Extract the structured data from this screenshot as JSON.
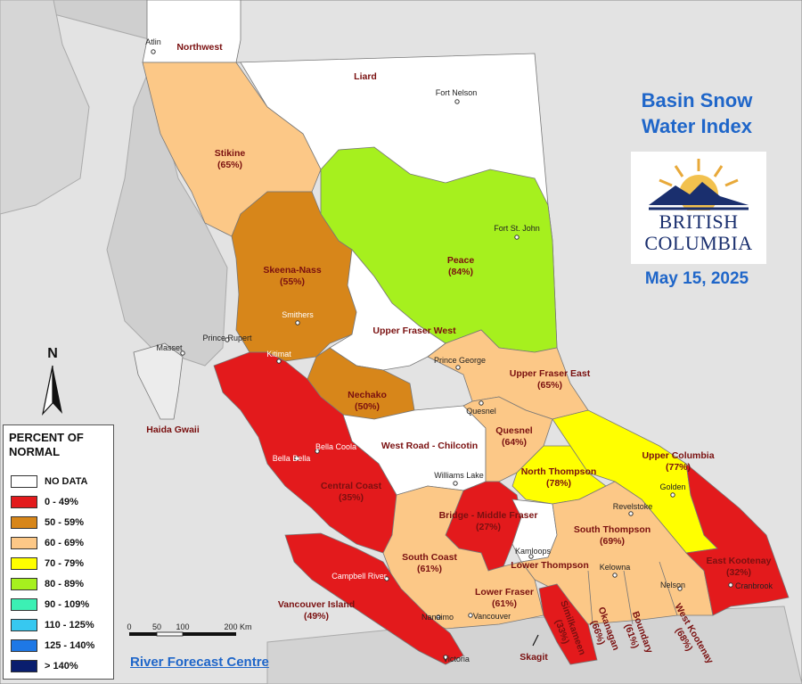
{
  "title_line1": "Basin Snow",
  "title_line2": "Water Index",
  "date": "May 15, 2025",
  "logo": {
    "line1": "BRITISH",
    "line2": "COLUMBIA"
  },
  "credit": "River Forecast Centre",
  "north_label": "N",
  "scale": {
    "t0": "0",
    "t1": "50",
    "t2": "100",
    "t3": "200 Km"
  },
  "legend": {
    "title1": "PERCENT OF",
    "title2": "NORMAL",
    "items": [
      {
        "label": "NO DATA",
        "color": "#ffffff"
      },
      {
        "label": "0 - 49%",
        "color": "#e31a1c"
      },
      {
        "label": "50 - 59%",
        "color": "#d7861a"
      },
      {
        "label": "60 - 69%",
        "color": "#fcc887"
      },
      {
        "label": "70 - 79%",
        "color": "#ffff00"
      },
      {
        "label": "80 - 89%",
        "color": "#a6f01e"
      },
      {
        "label": "90 - 109%",
        "color": "#3cf0b4"
      },
      {
        "label": "110 - 125%",
        "color": "#37c8f0"
      },
      {
        "label": "125 - 140%",
        "color": "#1e78e6"
      },
      {
        "label": "> 140%",
        "color": "#0a1e6e"
      }
    ]
  },
  "basins": {
    "northwest": {
      "name": "Northwest"
    },
    "liard": {
      "name": "Liard"
    },
    "stikine": {
      "name": "Stikine",
      "pct": "(65%)"
    },
    "skeena": {
      "name": "Skeena-Nass",
      "pct": "(55%)"
    },
    "peace": {
      "name": "Peace",
      "pct": "(84%)"
    },
    "ufw": {
      "name": "Upper Fraser West"
    },
    "ufe": {
      "name": "Upper Fraser East",
      "pct": "(65%)"
    },
    "nechako": {
      "name": "Nechako",
      "pct": "(50%)"
    },
    "haida": {
      "name": "Haida Gwaii"
    },
    "wrc": {
      "name": "West Road - Chilcotin"
    },
    "quesnel": {
      "name": "Quesnel",
      "pct": "(64%)"
    },
    "uppercol": {
      "name": "Upper Columbia",
      "pct": "(77%)"
    },
    "norththompson": {
      "name": "North Thompson",
      "pct": "(78%)"
    },
    "centralcoast": {
      "name": "Central Coast",
      "pct": "(35%)"
    },
    "bmf": {
      "name": "Bridge - Middle Fraser",
      "pct": "(27%)"
    },
    "souththompson": {
      "name": "South Thompson",
      "pct": "(69%)"
    },
    "southcoast": {
      "name": "South Coast",
      "pct": "(61%)"
    },
    "lowerthompson": {
      "name": "Lower Thompson"
    },
    "eastkootenay": {
      "name": "East Kootenay",
      "pct": "(32%)"
    },
    "vancouverisland": {
      "name": "Vancouver Island",
      "pct": "(49%)"
    },
    "lowerfraser": {
      "name": "Lower Fraser",
      "pct": "(61%)"
    },
    "similkameen": {
      "name": "Similkameen",
      "pct": "(33%)"
    },
    "okanagan": {
      "name": "Okanagan",
      "pct": "(66%)"
    },
    "boundary": {
      "name": "Boundary",
      "pct": "(61%)"
    },
    "westkootenay": {
      "name": "West Kootenay",
      "pct": "(68%)"
    },
    "skagit": {
      "name": "Skagit"
    }
  },
  "cities": {
    "atlin": "Atlin",
    "fortnelson": "Fort Nelson",
    "fortstjohn": "Fort St. John",
    "masset": "Masset",
    "princerupert": "Prince Rupert",
    "smithers": "Smithers",
    "kitimat": "Kitimat",
    "princegeorge": "Prince George",
    "quesnel": "Quesnel",
    "bellacoola": "Bella Coola",
    "bellabella": "Bella Bella",
    "williamslake": "Williams Lake",
    "golden": "Golden",
    "revelstoke": "Revelstoke",
    "kamloops": "Kamloops",
    "kelowna": "Kelowna",
    "campbellriver": "Campbell River",
    "nelson": "Nelson",
    "cranbrook": "Cranbrook",
    "nanaimo": "Nanaimo",
    "vancouver": "Vancouver",
    "victoria": "Victoria"
  }
}
